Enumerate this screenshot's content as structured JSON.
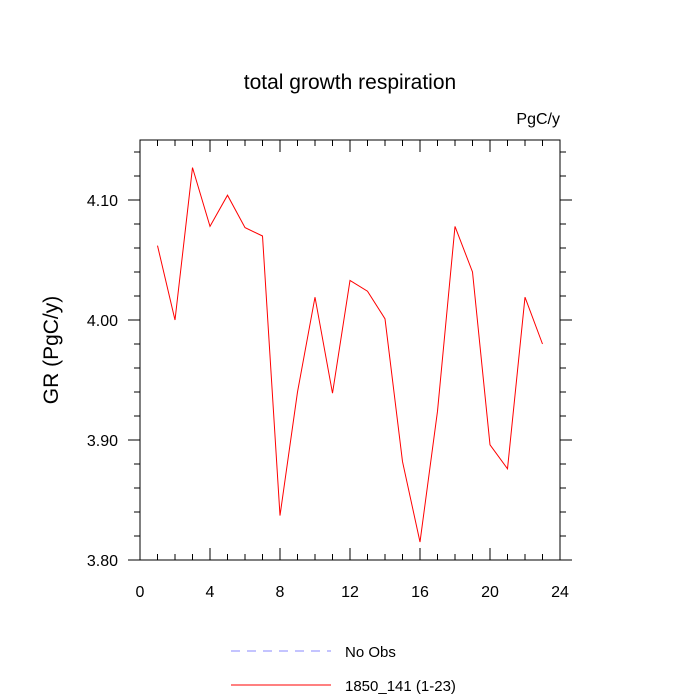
{
  "chart_data": {
    "type": "line",
    "title": "total growth respiration",
    "units_label": "PgC/y",
    "ylabel": "GR  (PgC/y)",
    "xlabel": "",
    "xlim": [
      0,
      24
    ],
    "ylim": [
      3.8,
      4.15
    ],
    "x_ticks": [
      0,
      4,
      8,
      12,
      16,
      20,
      24
    ],
    "x_tick_labels": [
      "0",
      "4",
      "8",
      "12",
      "16",
      "20",
      "24"
    ],
    "y_ticks": [
      3.8,
      3.9,
      4.0,
      4.1
    ],
    "y_tick_labels": [
      "3.80",
      "3.90",
      "4.00",
      "4.10"
    ],
    "grid": false,
    "legend_position": "bottom-center",
    "series": [
      {
        "name": "1850_141 (1-23)",
        "color": "#ff0000",
        "dash": "solid",
        "x": [
          1,
          2,
          3,
          4,
          5,
          6,
          7,
          8,
          9,
          10,
          11,
          12,
          13,
          14,
          15,
          16,
          17,
          18,
          19,
          20,
          21,
          22,
          23
        ],
        "values": [
          4.062,
          4.0,
          4.127,
          4.078,
          4.104,
          4.077,
          4.07,
          3.837,
          3.94,
          4.019,
          3.939,
          4.033,
          4.024,
          4.001,
          3.882,
          3.815,
          3.924,
          4.078,
          4.04,
          3.896,
          3.876,
          4.019,
          3.98
        ]
      }
    ],
    "legend": [
      {
        "label": "No Obs",
        "color": "#8a8aff",
        "dash": "dashed"
      },
      {
        "label": "1850_141 (1-23)",
        "color": "#ff0000",
        "dash": "solid"
      }
    ]
  }
}
